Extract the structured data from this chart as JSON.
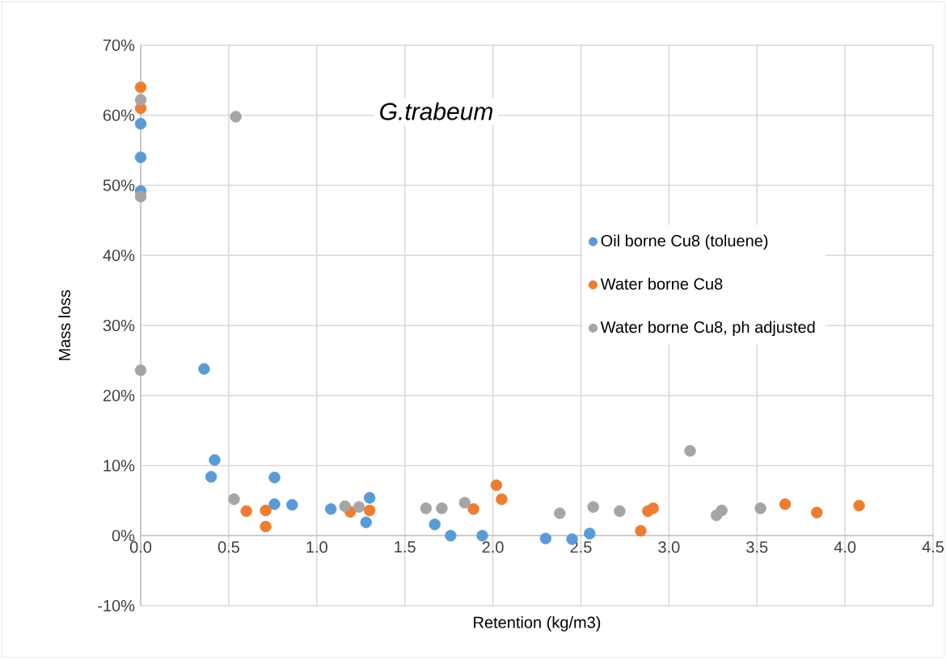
{
  "chart_data": {
    "type": "scatter",
    "title": "*G.trabeum*",
    "xlabel": "Retention (kg/m3)",
    "ylabel": "Mass loss",
    "xlim": [
      0,
      4.5
    ],
    "ylim": [
      -10,
      70
    ],
    "xticks": [
      {
        "value": 0,
        "label": "0.0"
      },
      {
        "value": 0.5,
        "label": "0.5"
      },
      {
        "value": 1,
        "label": "1.0"
      },
      {
        "value": 1.5,
        "label": "1.5"
      },
      {
        "value": 2,
        "label": "2.0"
      },
      {
        "value": 2.5,
        "label": "2.5"
      },
      {
        "value": 3,
        "label": "3.0"
      },
      {
        "value": 3.5,
        "label": "3.5"
      },
      {
        "value": 4,
        "label": "4.0"
      },
      {
        "value": 4.5,
        "label": "4.5"
      }
    ],
    "yticks": [
      {
        "value": -10,
        "label": "-10%"
      },
      {
        "value": 0,
        "label": "0%"
      },
      {
        "value": 10,
        "label": "10%"
      },
      {
        "value": 20,
        "label": "20%"
      },
      {
        "value": 30,
        "label": "30%"
      },
      {
        "value": 40,
        "label": "40%"
      },
      {
        "value": 50,
        "label": "50%"
      },
      {
        "value": 60,
        "label": "60%"
      },
      {
        "value": 70,
        "label": "70%"
      }
    ],
    "grid": true,
    "legend": "right",
    "marker": "circle",
    "series": [
      {
        "name": "Oil borne Cu8 (toluene)",
        "color": "#5b9bd5",
        "x": [
          0,
          0,
          0,
          0.36,
          0.42,
          0.4,
          0.76,
          0.76,
          0.86,
          1.08,
          1.3,
          1.28,
          1.67,
          1.76,
          1.94,
          2.3,
          2.45,
          2.55
        ],
        "values": [
          58.8,
          54.0,
          49.2,
          23.8,
          10.8,
          8.4,
          8.3,
          4.5,
          4.4,
          3.8,
          5.4,
          1.9,
          1.6,
          0,
          0,
          -0.4,
          -0.5,
          0.3
        ]
      },
      {
        "name": "Water borne Cu8",
        "color": "#ed7d31",
        "x": [
          0,
          0,
          0.6,
          0.71,
          0.71,
          1.19,
          1.3,
          1.89,
          2.02,
          2.05,
          2.84,
          2.88,
          2.91,
          3.66,
          3.84,
          4.08
        ],
        "values": [
          64.0,
          61.0,
          3.5,
          3.6,
          1.3,
          3.4,
          3.6,
          3.8,
          7.2,
          5.2,
          0.7,
          3.5,
          3.9,
          4.5,
          3.3,
          4.3
        ]
      },
      {
        "name": "Water borne Cu8, ph adjusted",
        "color": "#a5a5a5",
        "x": [
          0,
          0,
          0,
          0.54,
          0.53,
          1.16,
          1.24,
          1.62,
          1.71,
          1.84,
          2.38,
          2.57,
          2.72,
          3.12,
          3.27,
          3.3,
          3.52
        ],
        "values": [
          62.2,
          48.4,
          23.6,
          59.8,
          5.2,
          4.2,
          4.1,
          3.9,
          3.9,
          4.7,
          3.2,
          4.1,
          3.5,
          12.1,
          2.9,
          3.6,
          3.9
        ]
      }
    ]
  }
}
